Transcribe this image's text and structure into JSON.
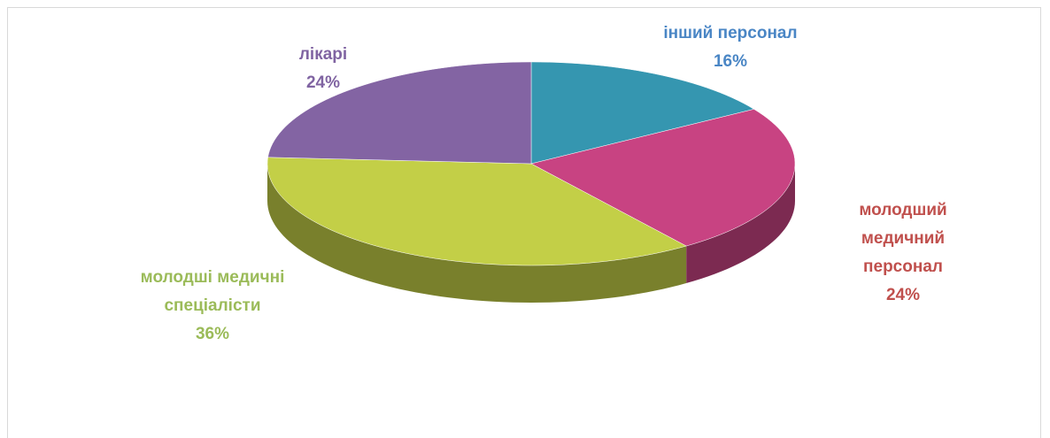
{
  "chart_data": {
    "type": "pie3d",
    "categories": [
      "інший персонал",
      "молодший медичний персонал",
      "молодші медичні спеціалісти",
      "лікарі"
    ],
    "values": [
      16,
      24,
      36,
      24
    ],
    "value_labels": [
      "16%",
      "24%",
      "36%",
      "24%"
    ],
    "colors": [
      "#3596b0",
      "#c84382",
      "#c3cf47",
      "#8364a3"
    ]
  }
}
